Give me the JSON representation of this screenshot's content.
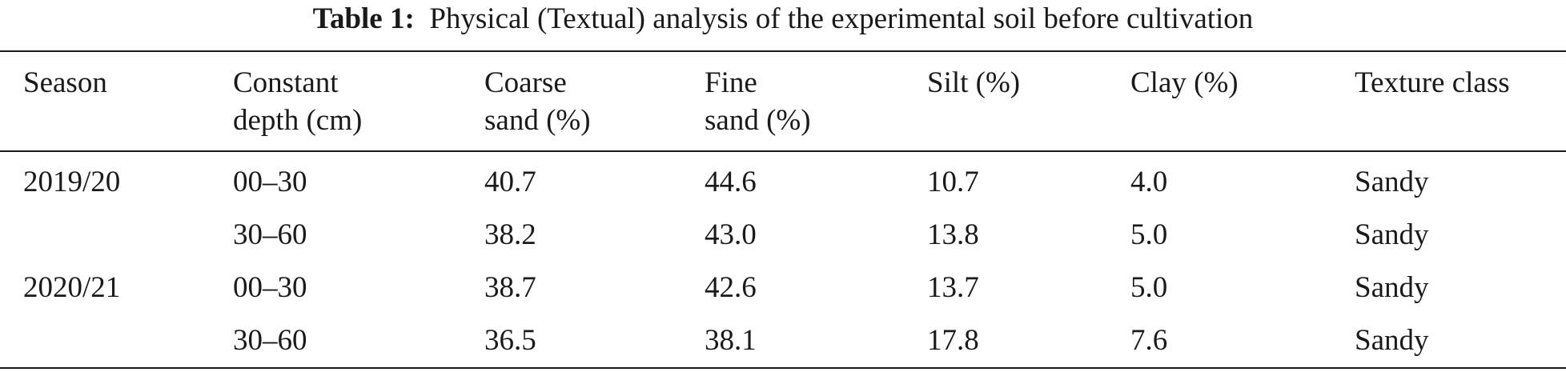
{
  "caption": {
    "label": "Table 1:",
    "text": "Physical (Textual) analysis of the experimental soil before cultivation"
  },
  "table": {
    "headers": [
      [
        "Season"
      ],
      [
        "Constant",
        "depth (cm)"
      ],
      [
        "Coarse",
        "sand (%)"
      ],
      [
        "Fine",
        "sand (%)"
      ],
      [
        "Silt (%)"
      ],
      [
        "Clay (%)"
      ],
      [
        "Texture class"
      ]
    ],
    "rows": [
      [
        "2019/20",
        "00–30",
        "40.7",
        "44.6",
        "10.7",
        "4.0",
        "Sandy"
      ],
      [
        "",
        "30–60",
        "38.2",
        "43.0",
        "13.8",
        "5.0",
        "Sandy"
      ],
      [
        "2020/21",
        "00–30",
        "38.7",
        "42.6",
        "13.7",
        "5.0",
        "Sandy"
      ],
      [
        "",
        "30–60",
        "36.5",
        "38.1",
        "17.8",
        "7.6",
        "Sandy"
      ]
    ]
  }
}
